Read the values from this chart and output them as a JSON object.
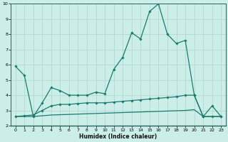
{
  "line_upper_x": [
    0,
    1,
    2,
    3,
    4,
    5,
    6,
    7,
    8,
    9,
    10,
    11,
    12,
    13,
    14,
    15,
    16,
    17,
    18,
    19,
    20,
    21,
    22,
    23
  ],
  "line_upper_y": [
    5.9,
    5.3,
    2.6,
    3.5,
    4.5,
    4.3,
    4.0,
    4.0,
    4.0,
    4.2,
    4.1,
    5.7,
    6.5,
    8.1,
    7.7,
    9.5,
    10.0,
    8.0,
    7.4,
    7.6,
    4.0,
    2.6,
    3.3,
    2.6
  ],
  "line_mid_x": [
    0,
    1,
    2,
    3,
    4,
    5,
    6,
    7,
    8,
    9,
    10,
    11,
    12,
    13,
    14,
    15,
    16,
    17,
    18,
    19,
    20,
    21,
    22,
    23
  ],
  "line_mid_y": [
    2.6,
    2.65,
    2.7,
    3.0,
    3.3,
    3.4,
    3.4,
    3.45,
    3.5,
    3.5,
    3.5,
    3.55,
    3.6,
    3.65,
    3.7,
    3.75,
    3.8,
    3.85,
    3.9,
    4.0,
    4.0,
    2.6,
    2.6,
    2.6
  ],
  "line_low_x": [
    0,
    1,
    2,
    3,
    4,
    5,
    6,
    7,
    8,
    9,
    10,
    11,
    12,
    13,
    14,
    15,
    16,
    17,
    18,
    19,
    20,
    21,
    22,
    23
  ],
  "line_low_y": [
    2.6,
    2.6,
    2.6,
    2.65,
    2.7,
    2.72,
    2.74,
    2.76,
    2.78,
    2.8,
    2.82,
    2.84,
    2.86,
    2.88,
    2.9,
    2.92,
    2.94,
    2.96,
    2.98,
    3.0,
    3.05,
    2.6,
    2.6,
    2.6
  ],
  "bg_color": "#cceee8",
  "line_color": "#1a7a6e",
  "grid_color": "#aad4ce",
  "xlabel": "Humidex (Indice chaleur)",
  "ylim": [
    2,
    10
  ],
  "xlim": [
    0,
    23
  ]
}
